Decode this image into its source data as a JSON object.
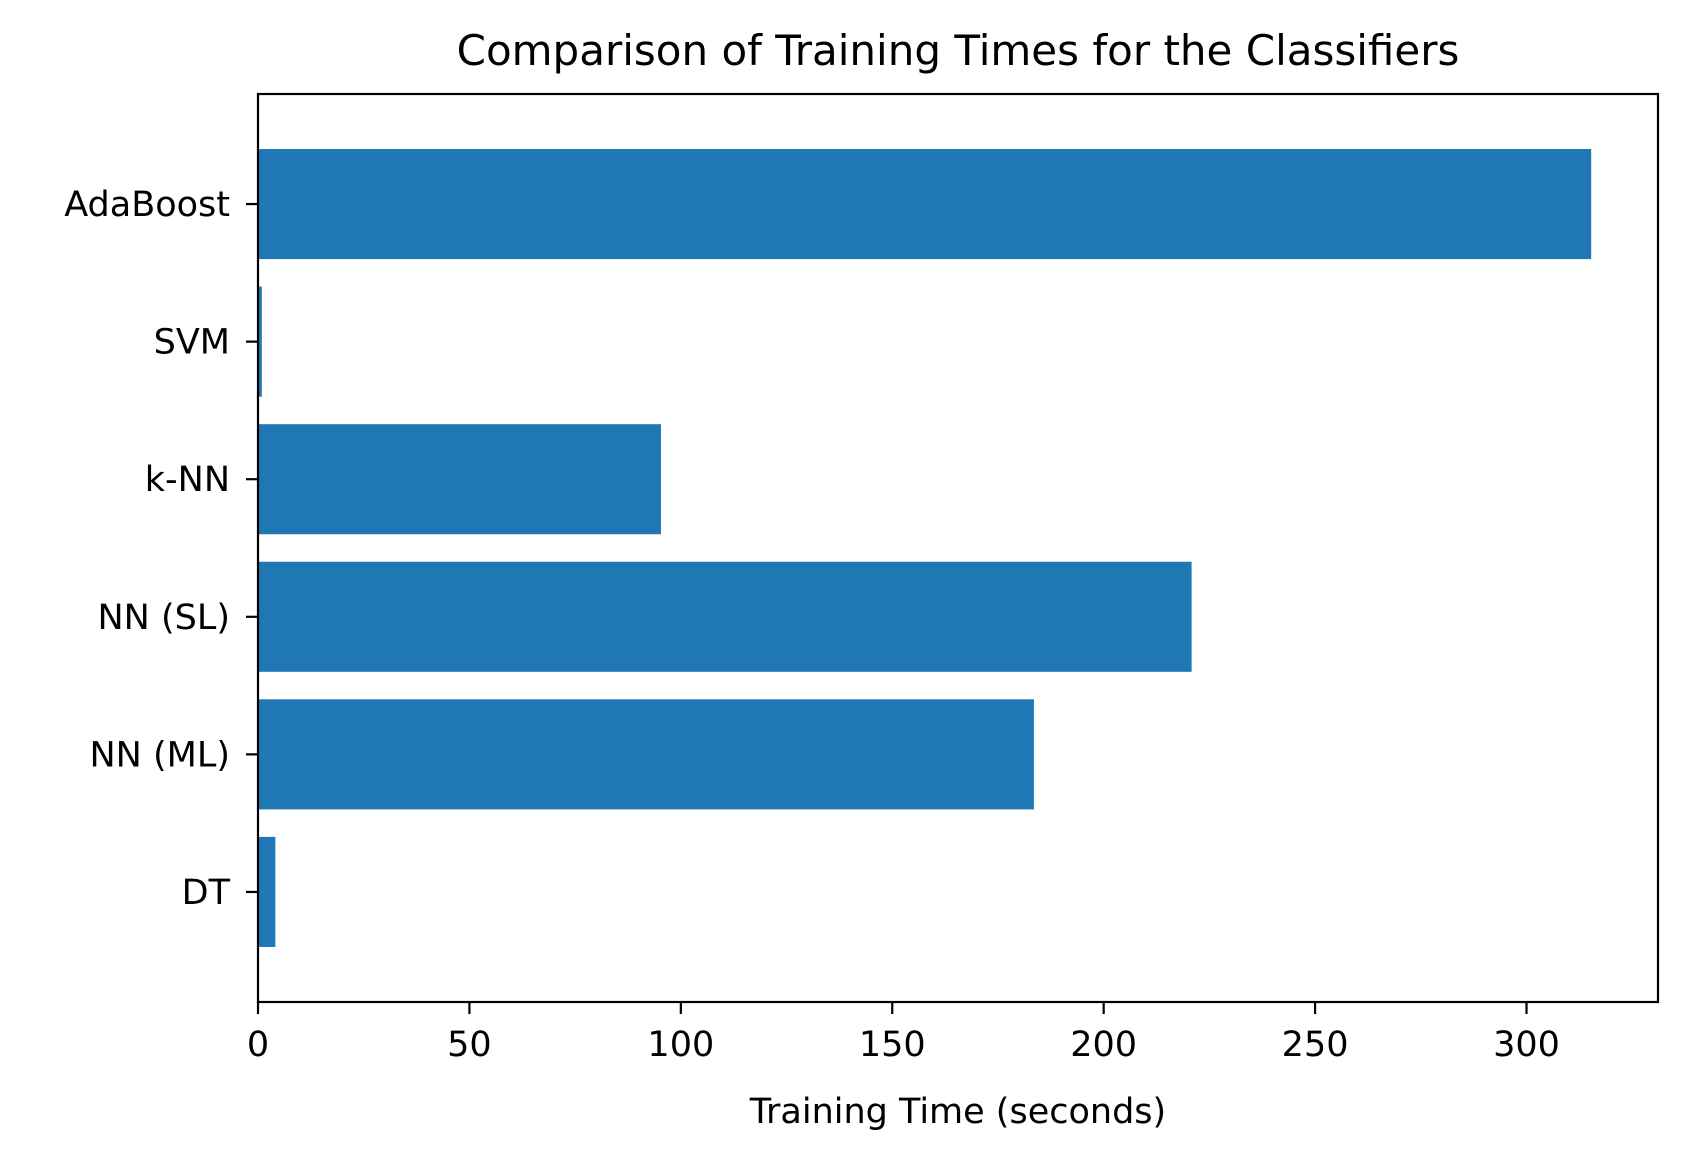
{
  "chart_data": {
    "type": "bar",
    "orientation": "horizontal",
    "title": "Comparison of Training Times for the Classifiers",
    "xlabel": "Training Time (seconds)",
    "ylabel": "",
    "categories": [
      "AdaBoost",
      "SVM",
      "k-NN",
      "NN (SL)",
      "NN (ML)",
      "DT"
    ],
    "values": [
      315.3,
      0.9,
      95.3,
      220.8,
      183.5,
      4.1
    ],
    "xlim": [
      0,
      331.1
    ],
    "xticks": [
      0,
      50,
      100,
      150,
      200,
      250,
      300
    ],
    "grid": false,
    "legend": "none",
    "colors": {
      "bar": "#1f77b4",
      "axes": "#000000",
      "background": "#ffffff"
    }
  }
}
